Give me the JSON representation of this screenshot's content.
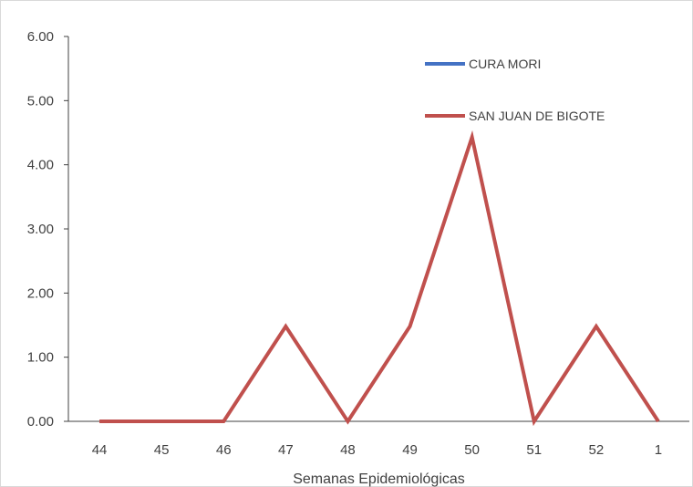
{
  "chart_data": {
    "type": "line",
    "title": "",
    "xlabel": "Semanas Epidemiológicas",
    "ylabel": "",
    "categories": [
      "44",
      "45",
      "46",
      "47",
      "48",
      "49",
      "50",
      "51",
      "52",
      "1"
    ],
    "ylim": [
      0,
      6
    ],
    "yticks": [
      "0.00",
      "1.00",
      "2.00",
      "3.00",
      "4.00",
      "5.00",
      "6.00"
    ],
    "grid": false,
    "legend": "top-right",
    "series": [
      {
        "name": "CURA MORI",
        "color": "#4472c4",
        "values": [
          null,
          null,
          null,
          null,
          null,
          null,
          null,
          null,
          null,
          null
        ]
      },
      {
        "name": "SAN JUAN DE BIGOTE",
        "color": "#c0504d",
        "values": [
          0,
          0,
          0,
          1.48,
          0,
          1.48,
          4.43,
          0,
          1.48,
          0
        ]
      }
    ]
  }
}
